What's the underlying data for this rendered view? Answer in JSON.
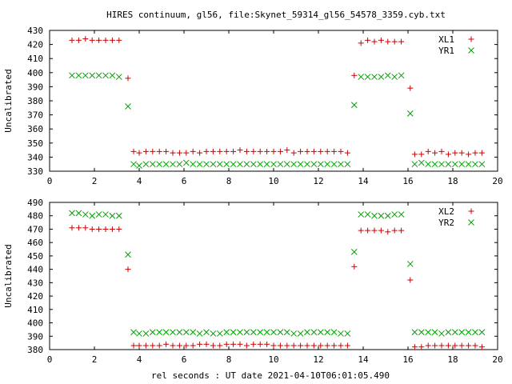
{
  "chart_data": [
    {
      "type": "scatter",
      "title": "HIRES continuum, gl56, file:Skynet_59314_gl56_54578_3359.cyb.txt",
      "xlabel": "",
      "ylabel": "Uncalibrated",
      "xlim": [
        0,
        20
      ],
      "ylim": [
        330,
        430
      ],
      "xticks": [
        0,
        2,
        4,
        6,
        8,
        10,
        12,
        14,
        16,
        18,
        20
      ],
      "yticks": [
        330,
        340,
        350,
        360,
        370,
        380,
        390,
        400,
        410,
        420,
        430
      ],
      "grid": false,
      "legend": "top-right",
      "series": [
        {
          "name": "XL1",
          "marker": "plus",
          "color": "#cc0000",
          "x": [
            1.0,
            1.3,
            1.6,
            1.9,
            2.2,
            2.5,
            2.8,
            3.1,
            3.5,
            3.75,
            4.0,
            4.3,
            4.6,
            4.9,
            5.2,
            5.5,
            5.8,
            6.1,
            6.4,
            6.7,
            7.0,
            7.3,
            7.6,
            7.9,
            8.2,
            8.5,
            8.8,
            9.1,
            9.4,
            9.7,
            10.0,
            10.3,
            10.6,
            10.9,
            11.2,
            11.5,
            11.8,
            12.1,
            12.4,
            12.7,
            13.0,
            13.3,
            13.6,
            13.9,
            14.2,
            14.5,
            14.8,
            15.1,
            15.4,
            15.7,
            16.1,
            16.3,
            16.6,
            16.9,
            17.2,
            17.5,
            17.8,
            18.1,
            18.4,
            18.7,
            19.0,
            19.3
          ],
          "y": [
            423,
            423,
            424,
            423,
            423,
            423,
            423,
            423,
            396,
            344,
            343,
            344,
            344,
            344,
            344,
            343,
            343,
            343,
            344,
            343,
            344,
            344,
            344,
            344,
            344,
            345,
            344,
            344,
            344,
            344,
            344,
            344,
            345,
            343,
            344,
            344,
            344,
            344,
            344,
            344,
            344,
            343,
            398,
            421,
            423,
            422,
            423,
            422,
            422,
            422,
            389,
            342,
            342,
            344,
            343,
            344,
            342,
            343,
            343,
            342,
            343,
            343
          ]
        },
        {
          "name": "YR1",
          "marker": "cross",
          "color": "#00a000",
          "x": [
            1.0,
            1.3,
            1.6,
            1.9,
            2.2,
            2.5,
            2.8,
            3.1,
            3.5,
            3.75,
            4.0,
            4.3,
            4.6,
            4.9,
            5.2,
            5.5,
            5.8,
            6.1,
            6.4,
            6.7,
            7.0,
            7.3,
            7.6,
            7.9,
            8.2,
            8.5,
            8.8,
            9.1,
            9.4,
            9.7,
            10.0,
            10.3,
            10.6,
            10.9,
            11.2,
            11.5,
            11.8,
            12.1,
            12.4,
            12.7,
            13.0,
            13.3,
            13.6,
            13.9,
            14.2,
            14.5,
            14.8,
            15.1,
            15.4,
            15.7,
            16.1,
            16.3,
            16.6,
            16.9,
            17.2,
            17.5,
            17.8,
            18.1,
            18.4,
            18.7,
            19.0,
            19.3
          ],
          "y": [
            398,
            398,
            398,
            398,
            398,
            398,
            398,
            397,
            376,
            335,
            334,
            335,
            335,
            335,
            335,
            335,
            335,
            336,
            335,
            335,
            335,
            335,
            335,
            335,
            335,
            335,
            335,
            335,
            335,
            335,
            335,
            335,
            335,
            335,
            335,
            335,
            335,
            335,
            335,
            335,
            335,
            335,
            377,
            397,
            397,
            397,
            397,
            398,
            397,
            398,
            371,
            335,
            336,
            335,
            335,
            335,
            335,
            335,
            335,
            335,
            335,
            335
          ]
        }
      ]
    },
    {
      "type": "scatter",
      "title": "",
      "xlabel": "rel seconds : UT date 2021-04-10T06:01:05.490",
      "ylabel": "Uncalibrated",
      "xlim": [
        0,
        20
      ],
      "ylim": [
        380,
        490
      ],
      "xticks": [
        0,
        2,
        4,
        6,
        8,
        10,
        12,
        14,
        16,
        18,
        20
      ],
      "yticks": [
        380,
        390,
        400,
        410,
        420,
        430,
        440,
        450,
        460,
        470,
        480,
        490
      ],
      "grid": false,
      "legend": "top-right",
      "series": [
        {
          "name": "XL2",
          "marker": "plus",
          "color": "#cc0000",
          "x": [
            1.0,
            1.3,
            1.6,
            1.9,
            2.2,
            2.5,
            2.8,
            3.1,
            3.5,
            3.75,
            4.0,
            4.3,
            4.6,
            4.9,
            5.2,
            5.5,
            5.8,
            6.1,
            6.4,
            6.7,
            7.0,
            7.3,
            7.6,
            7.9,
            8.2,
            8.5,
            8.8,
            9.1,
            9.4,
            9.7,
            10.0,
            10.3,
            10.6,
            10.9,
            11.2,
            11.5,
            11.8,
            12.1,
            12.4,
            12.7,
            13.0,
            13.3,
            13.6,
            13.9,
            14.2,
            14.5,
            14.8,
            15.1,
            15.4,
            15.7,
            16.1,
            16.3,
            16.6,
            16.9,
            17.2,
            17.5,
            17.8,
            18.1,
            18.4,
            18.7,
            19.0,
            19.3
          ],
          "y": [
            471,
            471,
            471,
            470,
            470,
            470,
            470,
            470,
            440,
            383,
            383,
            383,
            383,
            383,
            384,
            383,
            383,
            383,
            383,
            384,
            384,
            383,
            383,
            384,
            384,
            384,
            383,
            384,
            384,
            384,
            383,
            383,
            383,
            383,
            383,
            383,
            383,
            383,
            383,
            383,
            383,
            383,
            442,
            469,
            469,
            469,
            469,
            468,
            469,
            469,
            432,
            382,
            382,
            383,
            383,
            383,
            383,
            383,
            383,
            383,
            383,
            382
          ]
        },
        {
          "name": "YR2",
          "marker": "cross",
          "color": "#00a000",
          "x": [
            1.0,
            1.3,
            1.6,
            1.9,
            2.2,
            2.5,
            2.8,
            3.1,
            3.5,
            3.75,
            4.0,
            4.3,
            4.6,
            4.9,
            5.2,
            5.5,
            5.8,
            6.1,
            6.4,
            6.7,
            7.0,
            7.3,
            7.6,
            7.9,
            8.2,
            8.5,
            8.8,
            9.1,
            9.4,
            9.7,
            10.0,
            10.3,
            10.6,
            10.9,
            11.2,
            11.5,
            11.8,
            12.1,
            12.4,
            12.7,
            13.0,
            13.3,
            13.6,
            13.9,
            14.2,
            14.5,
            14.8,
            15.1,
            15.4,
            15.7,
            16.1,
            16.3,
            16.6,
            16.9,
            17.2,
            17.5,
            17.8,
            18.1,
            18.4,
            18.7,
            19.0,
            19.3
          ],
          "y": [
            482,
            482,
            481,
            480,
            481,
            481,
            480,
            480,
            451,
            393,
            392,
            392,
            393,
            393,
            393,
            393,
            393,
            393,
            393,
            392,
            393,
            392,
            392,
            393,
            393,
            393,
            393,
            393,
            393,
            393,
            393,
            393,
            393,
            392,
            392,
            393,
            393,
            393,
            393,
            393,
            392,
            392,
            453,
            481,
            481,
            480,
            480,
            480,
            481,
            481,
            444,
            393,
            393,
            393,
            393,
            392,
            393,
            393,
            393,
            393,
            393,
            393
          ]
        }
      ]
    }
  ]
}
